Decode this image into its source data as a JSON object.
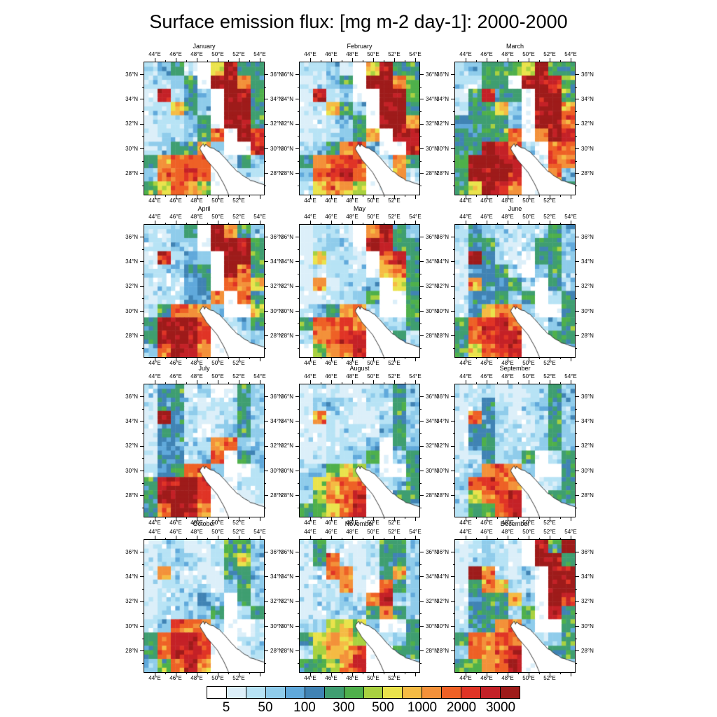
{
  "title": "Surface emission flux: [mg m-2 day-1]: 2000-2000",
  "chart_data": {
    "type": "heatmap",
    "layout": "12 monthly map panels in 4 rows x 3 columns, shared colorbar at bottom, legend position bottom-center",
    "region": {
      "lon_min": 43.0,
      "lon_max": 54.4,
      "lat_min": 26.3,
      "lat_max": 37.0,
      "description": "Persian Gulf / Arabian Peninsula - Zagros region; Gulf water shown white with black coastline"
    },
    "axes": {
      "lon_tick_labels_top": [
        "44°E",
        "46°E",
        "48°E",
        "50°E",
        "52°E",
        "54°E"
      ],
      "lon_tick_labels_bottom": [
        "44°E",
        "46°E",
        "48°E",
        "50°E",
        "52°E"
      ],
      "lat_tick_labels": [
        "36°N",
        "34°N",
        "32°N",
        "30°N",
        "28°N"
      ],
      "lon_tick_values_top": [
        44,
        46,
        48,
        50,
        52,
        54
      ],
      "lon_tick_values_bottom": [
        44,
        46,
        48,
        50,
        52
      ],
      "lat_tick_values": [
        36,
        34,
        32,
        30,
        28
      ],
      "lon_minor_tick_values": [
        45,
        47,
        49,
        51,
        53
      ],
      "lat_minor_tick_values": [
        35,
        33,
        31,
        29,
        27
      ],
      "grid": "off"
    },
    "colorbar": {
      "labels": [
        "5",
        "50",
        "100",
        "300",
        "500",
        "1000",
        "2000",
        "3000"
      ],
      "label_boundary_indices": [
        1,
        3,
        5,
        7,
        9,
        11,
        13,
        15
      ],
      "colors": [
        "#FFFFFF",
        "#DCEFF9",
        "#B7E3F5",
        "#8FCCEB",
        "#60A9DB",
        "#4083B4",
        "#3F9E71",
        "#4FB04B",
        "#A9D140",
        "#EAE34C",
        "#F5BB44",
        "#F3913A",
        "#EE6126",
        "#E03426",
        "#C42127",
        "#9E1B1A"
      ]
    },
    "grid_encoding": "Each month has 10 strings = latitude rows from 37N (top) to 26.3N (bottom); each string has 9 cells from 43E (west) to 54.4E (east). Hex digit 0-F indexes colorbar.colors (0 = <5 white, F = >3000 dark red). Values estimated from the pixelated raster.",
    "months": [
      {
        "name": "January",
        "grid": [
          "236109F66",
          "22360FFB6",
          "1E2630FF7",
          "22A630FF6",
          "122360FF6",
          "12236C0FE",
          "2366B300E",
          "6BCCC0263",
          "3CCEC0022",
          "79CB80011"
        ]
      },
      {
        "name": "February",
        "grid": [
          "223109F66",
          "12360FFB7",
          "1E2300FF7",
          "12A630FF6",
          "112360FFB",
          "12236B0FE",
          "236BC300E",
          "6BCDC02B6",
          "3CDEC00B2",
          "29CB80022"
        ]
      },
      {
        "name": "March",
        "grid": [
          "236679F66",
          "22660FFE7",
          "16E660FF7",
          "266A30FFB",
          "566630FFC",
          "6667C0BFE",
          "66FEC30CC",
          "7FFFE02CB",
          "6FFFE00B3",
          "69FEB0026"
        ]
      },
      {
        "name": "April",
        "grid": [
          "22360FB63",
          "22330FFE6",
          "1E2430FF6",
          "223560FC6",
          "122450CB9",
          "12245B0C6",
          "26CBB3009",
          "6FFFC0236",
          "6FFFD0023",
          "3CFEB0012"
        ]
      },
      {
        "name": "May",
        "grid": [
          "12210BF63",
          "12320FE66",
          "1A2210CE6",
          "112220AB6",
          "1B1223096",
          "112237006",
          "236BC3007",
          "6CCDB0226",
          "2BCDE0062",
          "07BCE0023"
        ]
      },
      {
        "name": "June",
        "grid": [
          "253212263",
          "256212663",
          "1F5210663",
          "155620363",
          "1B5562063",
          "155636026",
          "25ACB3006",
          "6CDEC0236",
          "6CDEE0066",
          "69CDE0023"
        ]
      },
      {
        "name": "July",
        "grid": [
          "256120163",
          "156212263",
          "1F5211263",
          "155201363",
          "15522BC33",
          "15523C063",
          "256CC3002",
          "6EFFD0022",
          "6FFFD0012",
          "6CFEB0011"
        ]
      },
      {
        "name": "August",
        "grid": [
          "122112363",
          "123212263",
          "1B2211263",
          "112221363",
          "112223063",
          "112237036",
          "237983006",
          "39BCB0236",
          "28BCE0066",
          "679CE0023"
        ]
      },
      {
        "name": "September",
        "grid": [
          "122112263",
          "125212363",
          "1C5211263",
          "155221263",
          "156222363",
          "125236026",
          "23BCB3006",
          "3CDCB0226",
          "29CDE0066",
          "267CE0023"
        ]
      },
      {
        "name": "October",
        "grid": [
          "122112773",
          "123212693",
          "1B2211663",
          "122221363",
          "122253063",
          "122336026",
          "23CCB3002",
          "6CEED0022",
          "6CEED0012",
          "37CEB0011"
        ]
      },
      {
        "name": "November",
        "grid": [
          "162112663",
          "16C211663",
          "12CB116A3",
          "122B10C63",
          "12231CE33",
          "112236B63",
          "238983006",
          "69BA80236",
          "28ABD0066",
          "678BE0023"
        ]
      },
      {
        "name": "December",
        "grid": [
          "123210F6F",
          "123210FF6",
          "1FB2130FF",
          "16BA210FF",
          "1566A30FE",
          "1566370E6",
          "256BC3006",
          "6CBDC0236",
          "3CBCE0066",
          "67BCE0023"
        ]
      }
    ]
  }
}
